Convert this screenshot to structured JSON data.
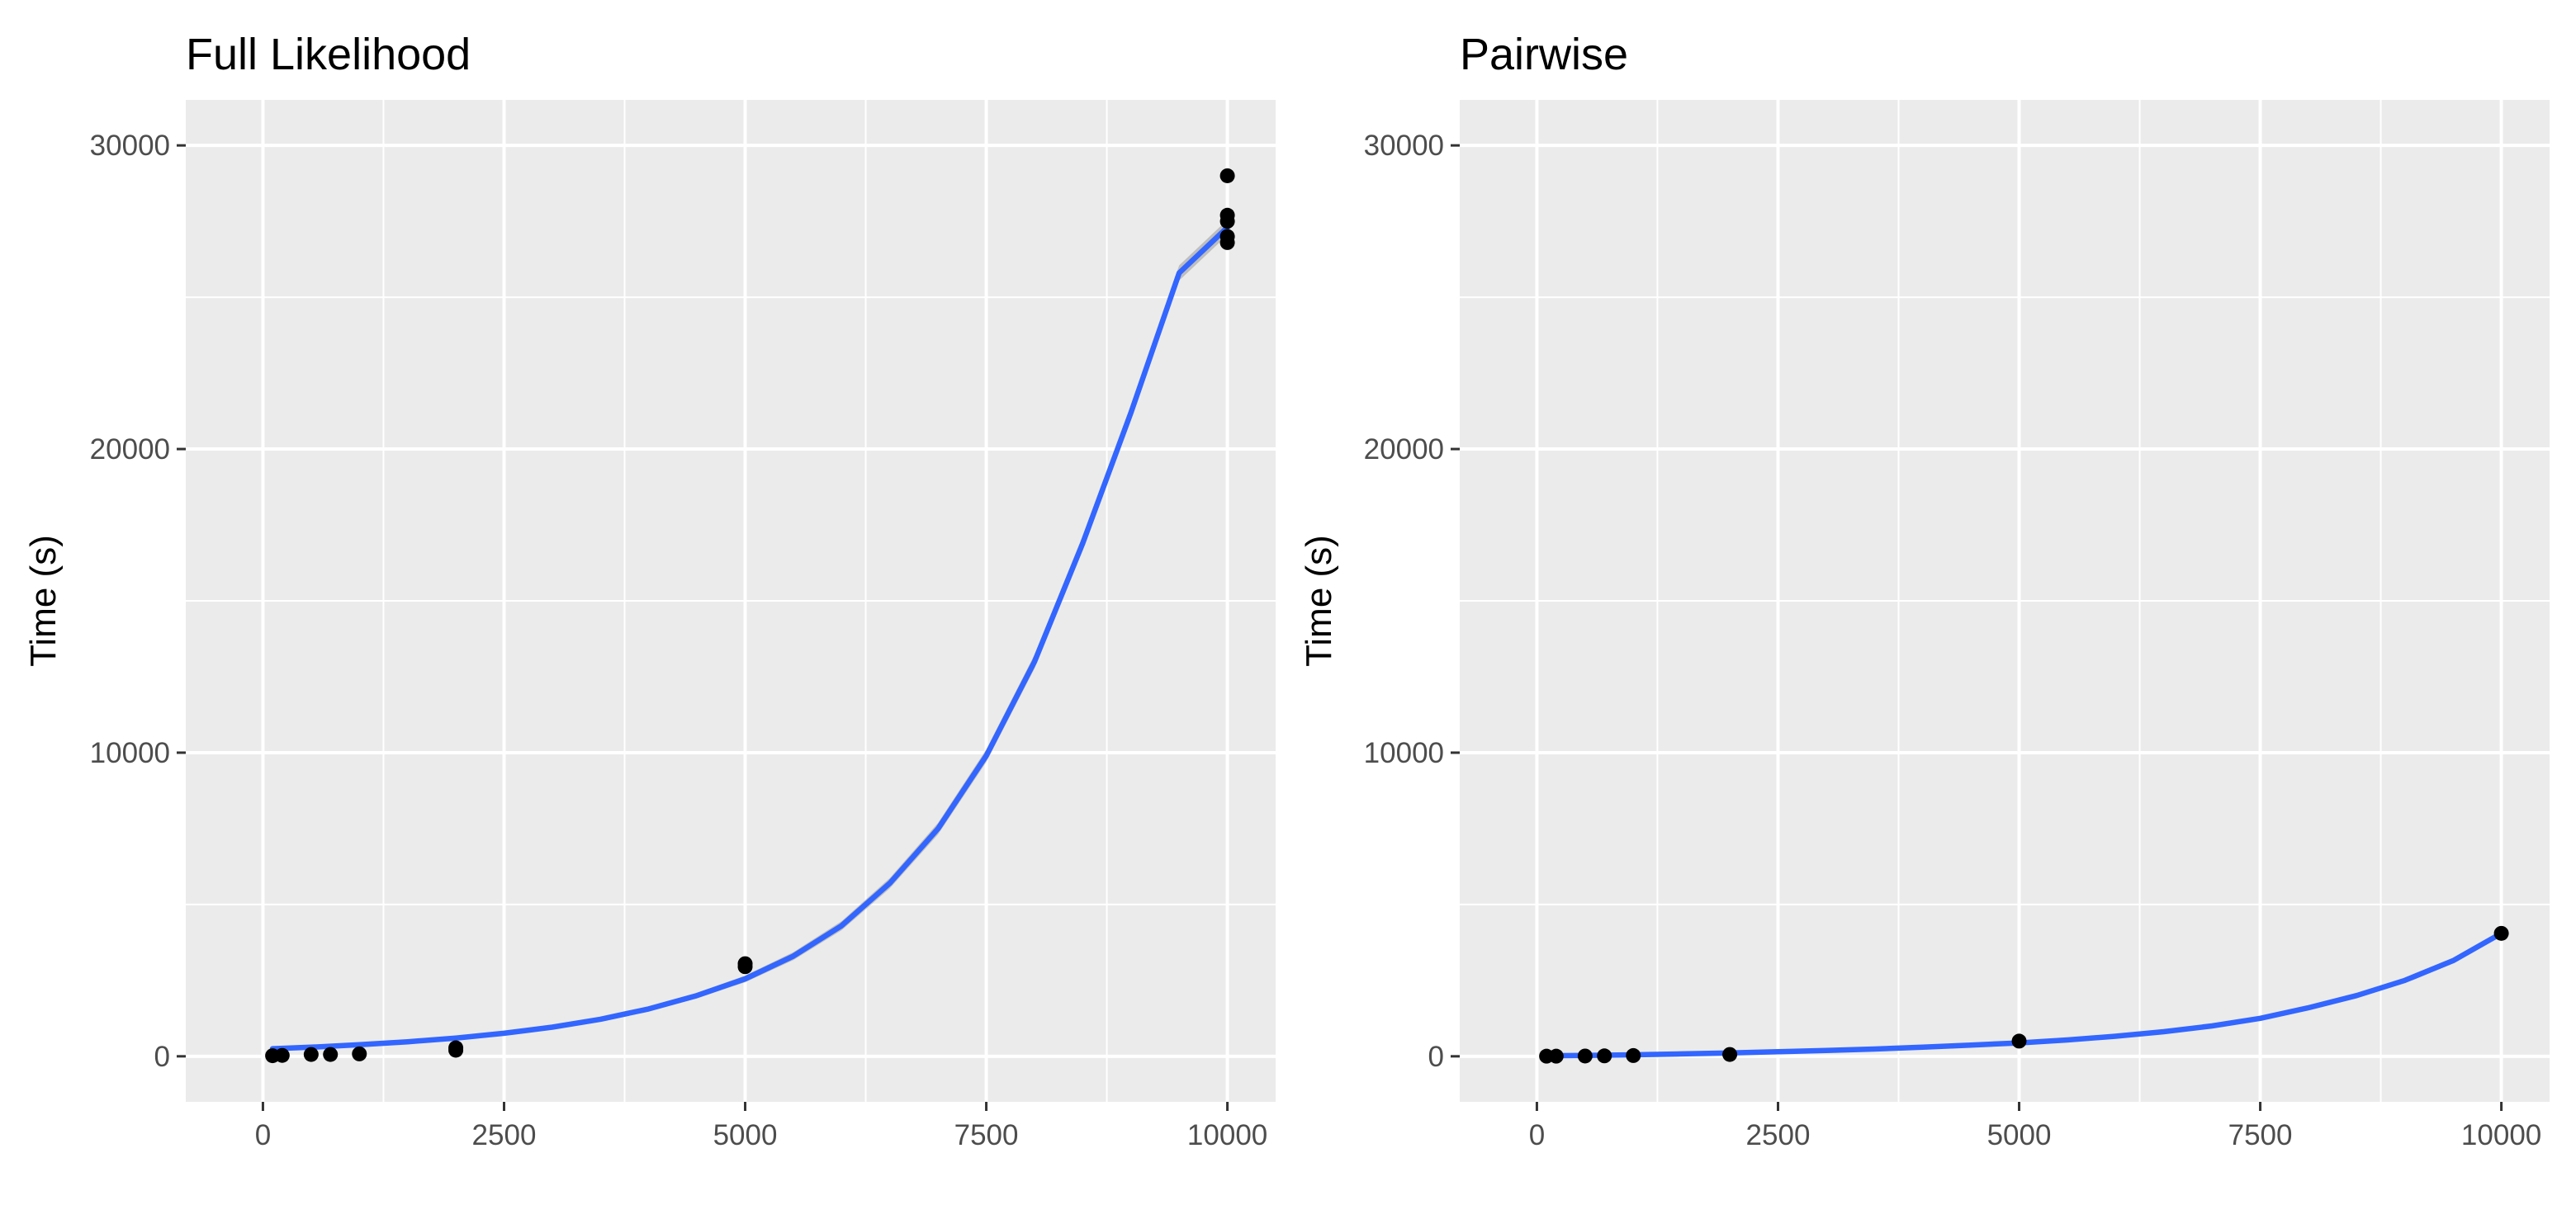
{
  "chart_data": [
    {
      "type": "scatter",
      "title": "Full Likelihood",
      "xlabel": "",
      "ylabel": "Time (s)",
      "xlim": [
        -800,
        10500
      ],
      "ylim": [
        -1500,
        31500
      ],
      "x_ticks": [
        0,
        2500,
        5000,
        7500,
        10000
      ],
      "x_tick_labels": [
        "0",
        "2500",
        "5000",
        "7500",
        "10000"
      ],
      "y_ticks": [
        0,
        10000,
        20000,
        30000
      ],
      "y_tick_labels": [
        "0",
        "10000",
        "20000",
        "30000"
      ],
      "grid": true,
      "points": [
        {
          "x": 100,
          "y": 20
        },
        {
          "x": 200,
          "y": 30
        },
        {
          "x": 500,
          "y": 60
        },
        {
          "x": 700,
          "y": 60
        },
        {
          "x": 1000,
          "y": 80
        },
        {
          "x": 2000,
          "y": 200
        },
        {
          "x": 2000,
          "y": 280
        },
        {
          "x": 5000,
          "y": 2950
        },
        {
          "x": 5000,
          "y": 3050
        },
        {
          "x": 10000,
          "y": 29000
        },
        {
          "x": 10000,
          "y": 27700
        },
        {
          "x": 10000,
          "y": 27500
        },
        {
          "x": 10000,
          "y": 27000
        },
        {
          "x": 10000,
          "y": 26800
        }
      ],
      "fit": {
        "x": [
          100,
          500,
          1000,
          1500,
          2000,
          2500,
          3000,
          3500,
          4000,
          4500,
          5000,
          5500,
          6000,
          6500,
          7000,
          7500,
          8000,
          8500,
          9000,
          9500,
          10000
        ],
        "y": [
          250,
          300,
          380,
          480,
          600,
          760,
          960,
          1220,
          1560,
          2000,
          2550,
          3300,
          4300,
          5700,
          7500,
          9900,
          13000,
          16900,
          21200,
          25800,
          27300
        ],
        "se": [
          60,
          60,
          60,
          60,
          60,
          60,
          60,
          70,
          80,
          90,
          110,
          130,
          150,
          170,
          190,
          210,
          230,
          240,
          250,
          250,
          250
        ]
      },
      "fit_color": "#3366ff",
      "point_color": "#000000"
    },
    {
      "type": "scatter",
      "title": "Pairwise",
      "xlabel": "",
      "ylabel": "Time (s)",
      "xlim": [
        -800,
        10500
      ],
      "ylim": [
        -1500,
        31500
      ],
      "x_ticks": [
        0,
        2500,
        5000,
        7500,
        10000
      ],
      "x_tick_labels": [
        "0",
        "2500",
        "5000",
        "7500",
        "10000"
      ],
      "y_ticks": [
        0,
        10000,
        20000,
        30000
      ],
      "y_tick_labels": [
        "0",
        "10000",
        "20000",
        "30000"
      ],
      "grid": true,
      "points": [
        {
          "x": 100,
          "y": 5
        },
        {
          "x": 200,
          "y": 5
        },
        {
          "x": 500,
          "y": 10
        },
        {
          "x": 700,
          "y": 15
        },
        {
          "x": 1000,
          "y": 25
        },
        {
          "x": 2000,
          "y": 60
        },
        {
          "x": 5000,
          "y": 500
        },
        {
          "x": 10000,
          "y": 4050
        }
      ],
      "fit": {
        "x": [
          100,
          500,
          1000,
          1500,
          2000,
          2500,
          3000,
          3500,
          4000,
          4500,
          5000,
          5500,
          6000,
          6500,
          7000,
          7500,
          8000,
          8500,
          9000,
          9500,
          10000
        ],
        "y": [
          20,
          30,
          50,
          80,
          110,
          150,
          190,
          240,
          300,
          370,
          440,
          540,
          660,
          810,
          1000,
          1250,
          1600,
          2000,
          2500,
          3150,
          4050
        ],
        "se": [
          15,
          15,
          15,
          15,
          15,
          15,
          15,
          15,
          15,
          15,
          20,
          20,
          20,
          20,
          25,
          25,
          25,
          30,
          30,
          35,
          40
        ]
      },
      "fit_color": "#3366ff",
      "point_color": "#000000"
    }
  ]
}
